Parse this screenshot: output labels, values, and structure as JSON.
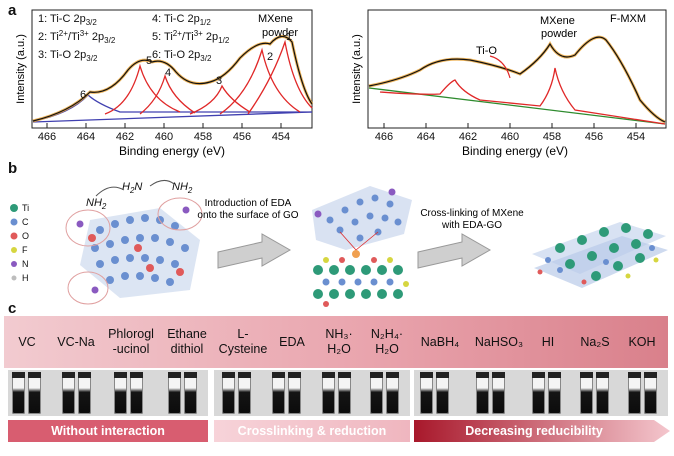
{
  "panel_a": {
    "letter": "a",
    "left_plot": {
      "ylabel": "Intensity (a.u.)",
      "xlabel": "Binding energy (eV)",
      "xticks": [
        "466",
        "464",
        "462",
        "460",
        "458",
        "456",
        "454"
      ],
      "corner_label_line1": "MXene",
      "corner_label_line2": "powder",
      "legend": {
        "c1": "1: Ti-C 2p",
        "c1_sub": "3/2",
        "c2": "2: Ti",
        "c2_sup1": "2+",
        "c2_mid": "/Ti",
        "c2_sup2": "3+",
        "c2_tail": " 2p",
        "c2_sub": "3/2",
        "c3": "3: Ti-O 2p",
        "c3_sub": "3/2",
        "c4": "4: Ti-C 2p",
        "c4_sub": "1/2",
        "c5": "5: Ti",
        "c5_sup1": "2+",
        "c5_mid": "/Ti",
        "c5_sup2": "3+",
        "c5_tail": " 2p",
        "c5_sub": "1/2",
        "c6": "6: Ti-O 2p",
        "c6_sub": "3/2"
      },
      "peak_numbers": [
        "1",
        "2",
        "3",
        "4",
        "5",
        "6"
      ]
    },
    "right_plot": {
      "ylabel": "Intensity (a.u.)",
      "xlabel": "Binding energy (eV)",
      "xticks": [
        "466",
        "464",
        "462",
        "460",
        "458",
        "456",
        "454"
      ],
      "label_tio": "Ti-O",
      "label_mxene_line1": "MXene",
      "label_mxene_line2": "powder",
      "label_fmxm": "F-MXM"
    },
    "colors": {
      "data": "#e8a030",
      "fit": "#111111",
      "red": "#e02828",
      "blue": "#4040b0",
      "green": "#2e8b2e"
    }
  },
  "panel_b": {
    "letter": "b",
    "legend": [
      "Ti",
      "C",
      "O",
      "F",
      "N",
      "H"
    ],
    "legend_colors": [
      "#2e9a78",
      "#6a8fd0",
      "#e05a5a",
      "#d6d640",
      "#8a5ac0",
      "#bdbdbd"
    ],
    "step1_line1": "Introduction of EDA",
    "step1_line2": "onto the surface of GO",
    "step2_line1": "Cross-linking of MXene",
    "step2_line2": "with EDA-GO",
    "formula_nh2": "NH",
    "formula_nh2_sub": "2",
    "formula_h2n": "H",
    "formula_h2n_sub": "2",
    "formula_h2n_tail": "N"
  },
  "panel_c": {
    "letter": "c",
    "reagents": [
      {
        "l1": "VC",
        "l2": ""
      },
      {
        "l1": "VC-Na",
        "l2": ""
      },
      {
        "l1": "Phlorogl",
        "l2": "-ucinol"
      },
      {
        "l1": "Ethane",
        "l2": "dithiol"
      },
      {
        "l1": "L-",
        "l2": "Cysteine"
      },
      {
        "l1": "EDA",
        "l2": ""
      },
      {
        "l1": "NH₃·",
        "l2": "H₂O"
      },
      {
        "l1": "N₂H₄·",
        "l2": "H₂O"
      },
      {
        "l1": "NaBH₄",
        "l2": ""
      },
      {
        "l1": "NaHSO₃",
        "l2": ""
      },
      {
        "l1": "HI",
        "l2": ""
      },
      {
        "l1": "Na₂S",
        "l2": ""
      },
      {
        "l1": "KOH",
        "l2": ""
      }
    ],
    "categories": [
      "Without interaction",
      "Crosslinking & reduction",
      "Decreasing reducibility"
    ]
  }
}
